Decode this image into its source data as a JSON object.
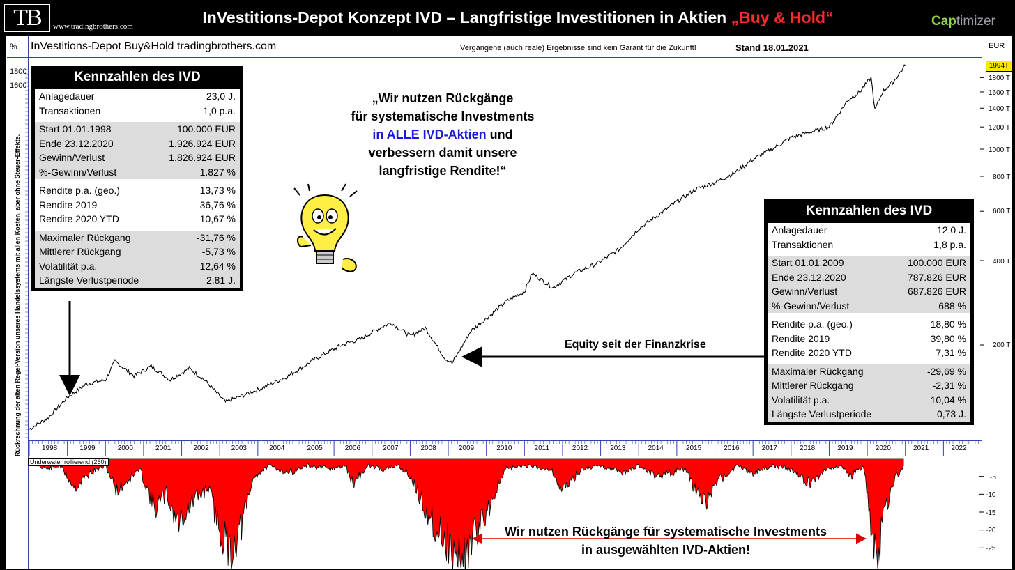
{
  "header": {
    "logo": "TB",
    "logo_url": "www.tradingbrothers.com",
    "title_main": "InVestitions-Depot Konzept  IVD – Langfristige Investitionen in Aktien ",
    "title_accent": "„Buy & Hold“",
    "brand_bold": "Cap",
    "brand_rest": "timizer"
  },
  "panel": {
    "pct_label": "%",
    "title": "InVestitions-Depot Buy&Hold   tradingbrothers.com",
    "disclaimer": "Vergangene (auch reale) Ergebnisse sind kein Garant für die Zukunft!",
    "stand": "Stand 18.01.2021",
    "eur_label": "EUR",
    "rotated_note": "Rückrechnung der alten Regel-Version unseres Handelssystems mit allen Kosten, aber ohne Steuer-Effekte.",
    "underwater_label": "Underwater rollierend (260)",
    "last_value": "1994T"
  },
  "quote": {
    "line1": "„Wir nutzen Rückgänge",
    "line2": "für systematische Investments",
    "line3_blue": "in ALLE  IVD-Aktien",
    "line3_rest": " und",
    "line4": "verbessern damit unsere",
    "line5": "langfristige Rendite!“"
  },
  "equity_label": "Equity seit der Finanzkrise",
  "bottom_note": {
    "line1": "Wir nutzen Rückgänge für systematische Investments",
    "line2": "in ausgewählten IVD-Aktien!"
  },
  "box_left": {
    "title": "Kennzahlen des IVD",
    "groups": [
      [
        [
          "Anlagedauer",
          "23,0 J."
        ],
        [
          "Transaktionen",
          "1,0 p.a."
        ]
      ],
      [
        [
          "Start  01.01.1998",
          "100.000 EUR"
        ],
        [
          "Ende 23.12.2020",
          "1.926.924 EUR"
        ],
        [
          "Gewinn/Verlust",
          "1.826.924 EUR"
        ],
        [
          "%-Gewinn/Verlust",
          "1.827 %"
        ]
      ],
      [
        [
          "Rendite p.a. (geo.)",
          "13,73 %"
        ],
        [
          "Rendite 2019",
          "36,76 %"
        ],
        [
          "Rendite 2020 YTD",
          "10,67 %"
        ]
      ],
      [
        [
          "Maximaler Rückgang",
          "-31,76 %"
        ],
        [
          "Mittlerer Rückgang",
          "-5,73 %"
        ],
        [
          "Volatilität p.a.",
          "12,64 %"
        ],
        [
          "Längste Verlustperiode",
          "2,81 J."
        ]
      ]
    ]
  },
  "box_right": {
    "title": "Kennzahlen des IVD",
    "groups": [
      [
        [
          "Anlagedauer",
          "12,0 J."
        ],
        [
          "Transaktionen",
          "1,8 p.a."
        ]
      ],
      [
        [
          "Start  01.01.2009",
          "100.000 EUR"
        ],
        [
          "Ende 23.12.2020",
          "787.826 EUR"
        ],
        [
          "Gewinn/Verlust",
          "687.826 EUR"
        ],
        [
          "%-Gewinn/Verlust",
          "688 %"
        ]
      ],
      [
        [
          "Rendite p.a. (geo.)",
          "18,80 %"
        ],
        [
          "Rendite 2019",
          "39,80 %"
        ],
        [
          "Rendite 2020 YTD",
          "7,31 %"
        ]
      ],
      [
        [
          "Maximaler Rückgang",
          "-29,69 %"
        ],
        [
          "Mittlerer Rückgang",
          "-2,31 %"
        ],
        [
          "Volatilität p.a.",
          "10,04 %"
        ],
        [
          "Längste Verlustperiode",
          "0,73 J."
        ]
      ]
    ]
  },
  "colors": {
    "accent_red": "#ff2a2a",
    "drawdown_fill": "#ff0000",
    "quote_blue": "#1a1adc",
    "brand_green": "#8fd14f",
    "last_value_bg": "#ffe800"
  },
  "chart_data": [
    {
      "type": "line",
      "title": "InVestitions-Depot Buy&Hold",
      "ylabel": "EUR",
      "yscale": "log",
      "x_tick_labels": [
        "1998",
        "1999",
        "2000",
        "2001",
        "2002",
        "2003",
        "2004",
        "2005",
        "2006",
        "2007",
        "2008",
        "2009",
        "2010",
        "2011",
        "2012",
        "2013",
        "2014",
        "2015",
        "2016",
        "2017",
        "2018",
        "2019",
        "2020",
        "2021",
        "2022"
      ],
      "y_tick_labels_left": [
        "1800",
        "1600"
      ],
      "y_tick_labels_right": [
        "1800 T",
        "1600 T",
        "1400 T",
        "1200 T",
        "1000 T",
        "800 T",
        "600 T",
        "400 T",
        "200 T"
      ],
      "series": [
        {
          "name": "Equity",
          "x": [
            1998.0,
            1998.5,
            1999.0,
            1999.5,
            2000.0,
            2000.25,
            2000.75,
            2001.2,
            2001.7,
            2002.2,
            2002.6,
            2003.15,
            2003.6,
            2004.2,
            2004.8,
            2005.5,
            2006.2,
            2006.7,
            2007.2,
            2007.5,
            2008.0,
            2008.4,
            2008.9,
            2009.1,
            2009.6,
            2010.1,
            2010.5,
            2011.0,
            2011.2,
            2011.75,
            2012.3,
            2012.9,
            2013.5,
            2014.0,
            2014.5,
            2015.0,
            2015.5,
            2016.0,
            2016.5,
            2017.0,
            2017.5,
            2018.0,
            2018.5,
            2019.0,
            2019.5,
            2019.8,
            2020.1,
            2020.2,
            2020.4,
            2020.7,
            2021.0
          ],
          "y": [
            100,
            110,
            130,
            145,
            150,
            175,
            155,
            168,
            150,
            165,
            150,
            125,
            132,
            142,
            155,
            178,
            200,
            210,
            230,
            240,
            215,
            230,
            180,
            172,
            225,
            255,
            285,
            310,
            360,
            320,
            360,
            390,
            440,
            520,
            580,
            650,
            720,
            760,
            820,
            920,
            1000,
            1100,
            1150,
            1200,
            1500,
            1600,
            1800,
            1380,
            1600,
            1750,
            1994
          ]
        }
      ]
    },
    {
      "type": "area",
      "title": "Underwater rollierend (260)",
      "ylabel": "%",
      "ylim": [
        -30,
        0
      ],
      "y_tick_labels": [
        "-5",
        "-10",
        "-15",
        "-20",
        "-25"
      ],
      "series": [
        {
          "name": "Underwater rollierend (260)",
          "x": [
            1998.0,
            1998.5,
            1998.8,
            1999.2,
            1999.6,
            2000.0,
            2000.3,
            2000.6,
            2000.9,
            2001.3,
            2001.6,
            2001.9,
            2002.3,
            2002.7,
            2003.0,
            2003.3,
            2003.6,
            2003.9,
            2004.3,
            2004.8,
            2005.3,
            2005.9,
            2006.3,
            2006.5,
            2006.9,
            2007.3,
            2007.7,
            2008.0,
            2008.3,
            2008.6,
            2008.9,
            2009.2,
            2009.5,
            2010.0,
            2010.5,
            2011.0,
            2011.7,
            2012.0,
            2012.5,
            2013.0,
            2013.6,
            2014.0,
            2014.5,
            2015.2,
            2015.7,
            2016.1,
            2016.6,
            2017.0,
            2017.5,
            2018.0,
            2018.5,
            2018.9,
            2019.3,
            2019.6,
            2019.9,
            2020.15,
            2020.25,
            2020.45,
            2020.7,
            2020.95
          ],
          "y": [
            -1,
            -3,
            -2,
            -8,
            -4,
            -2,
            -9,
            -6,
            -3,
            -14,
            -10,
            -18,
            -12,
            -8,
            -20,
            -26,
            -18,
            -5,
            -2,
            -4,
            -2,
            -3,
            -2,
            -7,
            -2,
            -3,
            -2,
            -5,
            -12,
            -18,
            -22,
            -28,
            -26,
            -15,
            -3,
            -2,
            -3,
            -9,
            -3,
            -2,
            -4,
            -2,
            -5,
            -3,
            -13,
            -6,
            -2,
            -4,
            -2,
            -3,
            -7,
            -3,
            -2,
            -5,
            -2,
            -24,
            -30,
            -15,
            -6,
            -2
          ]
        }
      ]
    }
  ]
}
